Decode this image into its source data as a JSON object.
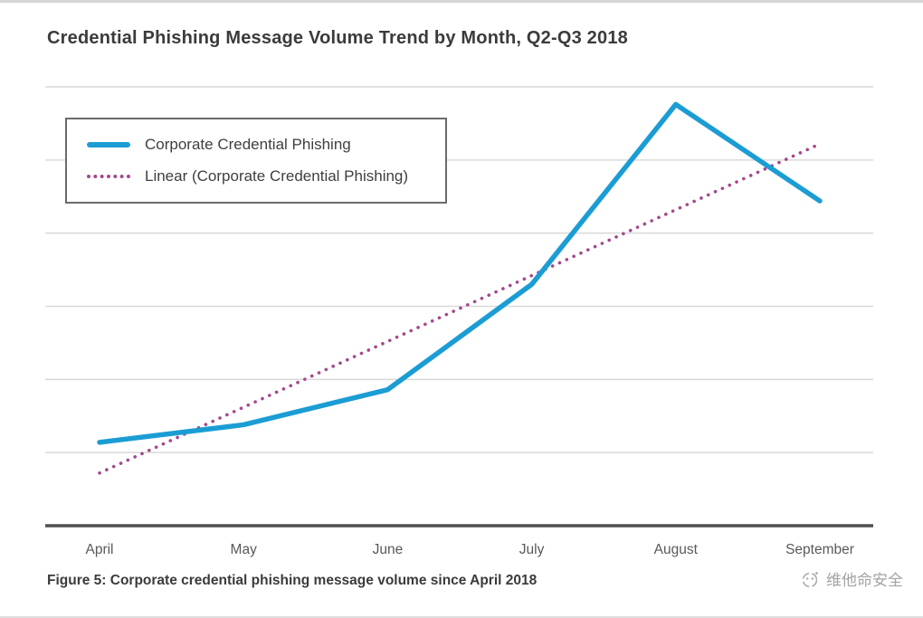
{
  "title": "Credential Phishing Message Volume Trend by Month, Q2-Q3 2018",
  "caption": "Figure 5: Corporate credential phishing message volume since April 2018",
  "watermark": {
    "text": "维他命安全"
  },
  "colors": {
    "series": "#1b9dd4",
    "trend": "#a3498e",
    "grid": "#d9d9d9",
    "axis": "#4f4f4f",
    "tick_text": "#595959",
    "title_text": "#3b3b3b"
  },
  "legend": {
    "items": [
      {
        "label": "Corporate Credential Phishing"
      },
      {
        "label": "Linear (Corporate Credential Phishing)"
      }
    ]
  },
  "chart_data": {
    "type": "line",
    "title": "Credential Phishing Message Volume Trend by Month, Q2-Q3 2018",
    "categories": [
      "April",
      "May",
      "June",
      "July",
      "August",
      "September"
    ],
    "series": [
      {
        "name": "Corporate Credential Phishing",
        "style": "solid",
        "values": [
          19,
          23,
          31,
          55,
          96,
          74
        ]
      },
      {
        "name": "Linear (Corporate Credential Phishing)",
        "style": "dotted",
        "values": [
          12,
          27,
          42,
          57,
          72,
          87
        ]
      }
    ],
    "xlabel": "",
    "ylabel": "",
    "ylim": [
      0,
      100
    ],
    "y_axis_labels_visible": false,
    "grid": "horizontal",
    "gridline_count": 6,
    "legend_position": "top-left"
  }
}
